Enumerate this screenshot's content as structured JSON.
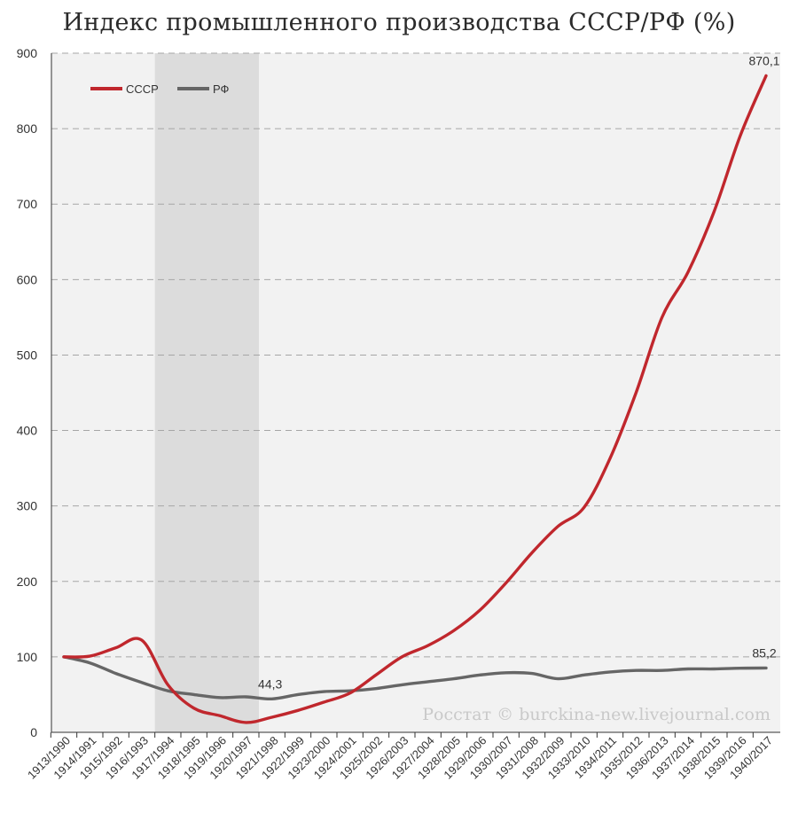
{
  "chart_data": {
    "type": "line",
    "title": "Индекс промышленного производства СССР/РФ (%)",
    "categories": [
      "1913/1990",
      "1914/1991",
      "1915/1992",
      "1916/1993",
      "1917/1994",
      "1918/1995",
      "1919/1996",
      "1920/1997",
      "1921/1998",
      "1922/1999",
      "1923/2000",
      "1924/2001",
      "1925/2002",
      "1926/2003",
      "1927/2004",
      "1928/2005",
      "1929/2006",
      "1930/2007",
      "1931/2008",
      "1932/2009",
      "1933/2010",
      "1934/2011",
      "1935/2012",
      "1936/2013",
      "1937/2014",
      "1938/2015",
      "1939/2016",
      "1940/2017"
    ],
    "series": [
      {
        "name": "СССР",
        "color": "#c0272d",
        "values": [
          100,
          101,
          112,
          122,
          63,
          32,
          22,
          13,
          20,
          29,
          40,
          52,
          76,
          100,
          115,
          135,
          162,
          198,
          238,
          273,
          298,
          363,
          450,
          550,
          610,
          690,
          790,
          870.1
        ]
      },
      {
        "name": "РФ",
        "color": "#666666",
        "values": [
          100,
          92,
          78,
          66,
          55,
          50,
          46,
          47,
          44.3,
          50,
          54,
          55,
          58,
          63,
          67,
          71,
          76,
          79,
          78,
          71,
          76,
          80,
          82,
          82,
          84,
          84,
          85,
          85.2
        ]
      }
    ],
    "ylim": [
      0,
      900
    ],
    "yticks": [
      0,
      100,
      200,
      300,
      400,
      500,
      600,
      700,
      800,
      900
    ],
    "grid": true,
    "legend_position": "top-left",
    "shaded_region": {
      "from": "1917/1994",
      "to": "1920/1997",
      "color": "#dcdcdc"
    },
    "annotations": [
      {
        "text": "870,1",
        "category": "1940/2017",
        "value": 870.1,
        "series": "СССР"
      },
      {
        "text": "85,2",
        "category": "1940/2017",
        "value": 85.2,
        "series": "РФ"
      },
      {
        "text": "44,3",
        "category": "1921/1998",
        "value": 44.3,
        "series": "РФ"
      }
    ],
    "watermark": "Росстат © burckina-new.livejournal.com",
    "plot_background": "#f2f2f2"
  }
}
